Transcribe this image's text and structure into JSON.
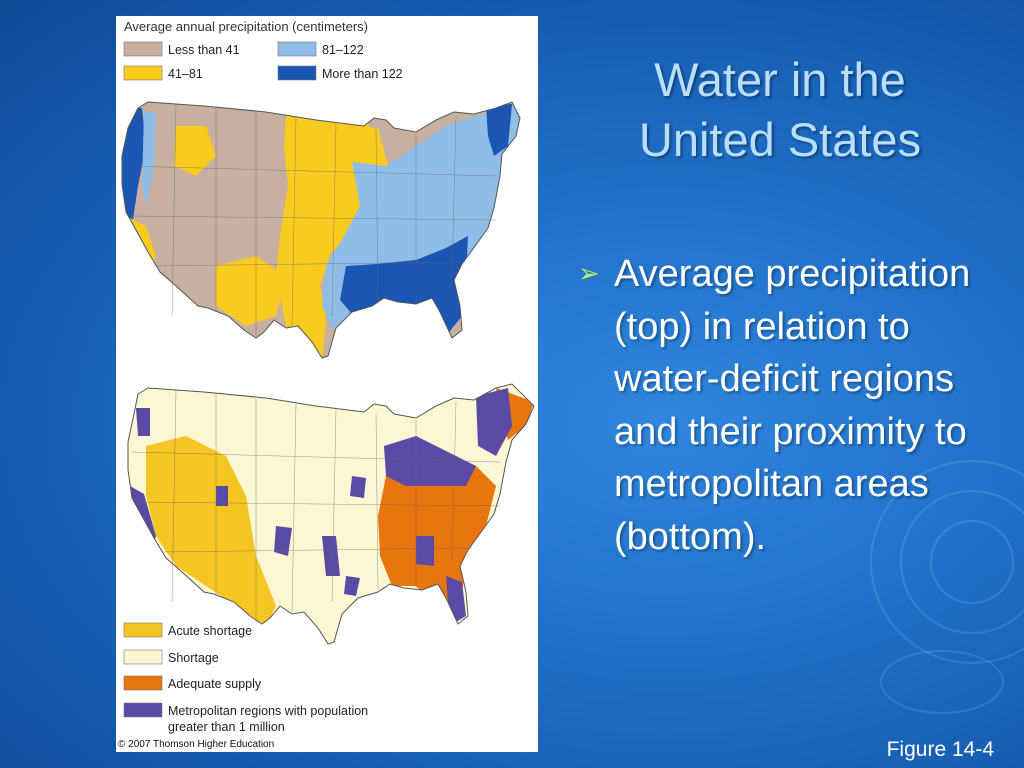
{
  "colors": {
    "background": "#1f6fc8",
    "title": "#b9defa",
    "bullet_marker": "#b9ee6a",
    "precip_less_41": "#c7b09f",
    "precip_41_81": "#f8cb1e",
    "precip_81_122": "#8fbde8",
    "precip_more_122": "#1b56b4",
    "acute_shortage": "#f5c522",
    "shortage": "#fbf7d2",
    "adequate_supply": "#e9750f",
    "metro_regions": "#5a4aa6"
  },
  "slide": {
    "title_line1": "Water in the",
    "title_line2": "United States",
    "bullet_icon": "arrow-bullet-icon",
    "bullet_text": "Average precipitation (top) in relation to water-deficit regions and their proximity to metropolitan areas (bottom).",
    "caption": "Figure 14-4"
  },
  "top_map": {
    "legend_title": "Average annual precipitation (centimeters)",
    "legend": [
      {
        "label": "Less than 41"
      },
      {
        "label": "81–122"
      },
      {
        "label": "41–81"
      },
      {
        "label": "More than 122"
      }
    ]
  },
  "bottom_map": {
    "legend": [
      {
        "label": "Acute shortage"
      },
      {
        "label": "Shortage"
      },
      {
        "label": "Adequate supply"
      },
      {
        "label_line1": "Metropolitan regions with population",
        "label_line2": "greater than 1 million"
      }
    ],
    "credit": "© 2007 Thomson Higher Education"
  }
}
